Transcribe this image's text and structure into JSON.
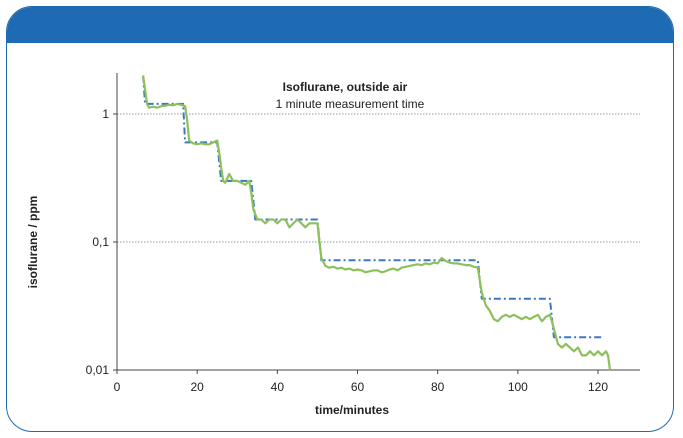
{
  "chart_data": {
    "type": "line",
    "title": "Isoflurane, outside air",
    "subtitle": "1 minute measurement time",
    "xlabel": "time/minutes",
    "ylabel": "isoflurane / ppm",
    "xlim": [
      0,
      130
    ],
    "ylim": [
      0.01,
      2
    ],
    "yscale": "log",
    "x_ticks": [
      0,
      20,
      40,
      60,
      80,
      100,
      120
    ],
    "x_tick_labels": [
      "0",
      "20",
      "40",
      "60",
      "80",
      "100",
      "120"
    ],
    "y_ticks": [
      0.01,
      0.1,
      1
    ],
    "y_tick_labels": [
      "0,01",
      "0,1",
      "1"
    ],
    "grid": "horizontal dotted at major y ticks",
    "legend": "none",
    "colors": {
      "measured": "#8dc05a",
      "setpoint": "#3a78c4",
      "frame": "#1e6bb4"
    },
    "series": [
      {
        "style": "dash-dot",
        "color": "#3a78c4",
        "points": [
          [
            6.5,
            2.0
          ],
          [
            7,
            1.2
          ],
          [
            16.5,
            1.2
          ],
          [
            17,
            0.6
          ],
          [
            25,
            0.6
          ],
          [
            26,
            0.3
          ],
          [
            33.5,
            0.3
          ],
          [
            34.5,
            0.15
          ],
          [
            50,
            0.15
          ],
          [
            51,
            0.072
          ],
          [
            90,
            0.072
          ],
          [
            91,
            0.036
          ],
          [
            108,
            0.036
          ],
          [
            109,
            0.018
          ],
          [
            121,
            0.018
          ]
        ]
      },
      {
        "style": "solid",
        "color": "#8dc05a",
        "points": [
          [
            6.5,
            2.0
          ],
          [
            7.5,
            1.2
          ],
          [
            8,
            1.12
          ],
          [
            9,
            1.14
          ],
          [
            10,
            1.12
          ],
          [
            11,
            1.15
          ],
          [
            12,
            1.16
          ],
          [
            13,
            1.18
          ],
          [
            14,
            1.17
          ],
          [
            15,
            1.2
          ],
          [
            16,
            1.18
          ],
          [
            17,
            1.15
          ],
          [
            17.5,
            0.9
          ],
          [
            18,
            0.62
          ],
          [
            19,
            0.59
          ],
          [
            20,
            0.58
          ],
          [
            21,
            0.59
          ],
          [
            22,
            0.58
          ],
          [
            23,
            0.58
          ],
          [
            24,
            0.6
          ],
          [
            25,
            0.62
          ],
          [
            25.5,
            0.5
          ],
          [
            26,
            0.38
          ],
          [
            26.5,
            0.3
          ],
          [
            27,
            0.29
          ],
          [
            28,
            0.34
          ],
          [
            29,
            0.3
          ],
          [
            30,
            0.3
          ],
          [
            31,
            0.29
          ],
          [
            32,
            0.28
          ],
          [
            33,
            0.3
          ],
          [
            33.5,
            0.24
          ],
          [
            34,
            0.18
          ],
          [
            35,
            0.15
          ],
          [
            36,
            0.15
          ],
          [
            37,
            0.14
          ],
          [
            38,
            0.15
          ],
          [
            39,
            0.15
          ],
          [
            40,
            0.14
          ],
          [
            41,
            0.15
          ],
          [
            42,
            0.15
          ],
          [
            43,
            0.13
          ],
          [
            44,
            0.14
          ],
          [
            45,
            0.15
          ],
          [
            46,
            0.14
          ],
          [
            47,
            0.13
          ],
          [
            48,
            0.14
          ],
          [
            49,
            0.14
          ],
          [
            50,
            0.14
          ],
          [
            50.5,
            0.1
          ],
          [
            51,
            0.075
          ],
          [
            52,
            0.065
          ],
          [
            53,
            0.063
          ],
          [
            54,
            0.064
          ],
          [
            55,
            0.062
          ],
          [
            56,
            0.063
          ],
          [
            57,
            0.061
          ],
          [
            58,
            0.062
          ],
          [
            59,
            0.06
          ],
          [
            60,
            0.061
          ],
          [
            61,
            0.06
          ],
          [
            62,
            0.058
          ],
          [
            63,
            0.059
          ],
          [
            64,
            0.06
          ],
          [
            65,
            0.06
          ],
          [
            66,
            0.058
          ],
          [
            67,
            0.059
          ],
          [
            68,
            0.061
          ],
          [
            69,
            0.062
          ],
          [
            70,
            0.06
          ],
          [
            71,
            0.063
          ],
          [
            72,
            0.064
          ],
          [
            73,
            0.065
          ],
          [
            74,
            0.066
          ],
          [
            75,
            0.067
          ],
          [
            76,
            0.066
          ],
          [
            77,
            0.068
          ],
          [
            78,
            0.067
          ],
          [
            79,
            0.069
          ],
          [
            80,
            0.068
          ],
          [
            81,
            0.075
          ],
          [
            82,
            0.071
          ],
          [
            83,
            0.069
          ],
          [
            84,
            0.068
          ],
          [
            85,
            0.068
          ],
          [
            86,
            0.067
          ],
          [
            87,
            0.066
          ],
          [
            88,
            0.066
          ],
          [
            89,
            0.064
          ],
          [
            90,
            0.063
          ],
          [
            91,
            0.04
          ],
          [
            92,
            0.032
          ],
          [
            93,
            0.029
          ],
          [
            94,
            0.025
          ],
          [
            95,
            0.024
          ],
          [
            96,
            0.026
          ],
          [
            97,
            0.027
          ],
          [
            98,
            0.026
          ],
          [
            99,
            0.027
          ],
          [
            100,
            0.026
          ],
          [
            101,
            0.025
          ],
          [
            102,
            0.026
          ],
          [
            103,
            0.025
          ],
          [
            104,
            0.026
          ],
          [
            105,
            0.027
          ],
          [
            106,
            0.024
          ],
          [
            107,
            0.026
          ],
          [
            108,
            0.027
          ],
          [
            108.5,
            0.024
          ],
          [
            109,
            0.021
          ],
          [
            110,
            0.016
          ],
          [
            111,
            0.015
          ],
          [
            112,
            0.016
          ],
          [
            113,
            0.015
          ],
          [
            114,
            0.014
          ],
          [
            115,
            0.015
          ],
          [
            116,
            0.013
          ],
          [
            117,
            0.013
          ],
          [
            118,
            0.014
          ],
          [
            119,
            0.013
          ],
          [
            120,
            0.014
          ],
          [
            121,
            0.013
          ],
          [
            122,
            0.014
          ],
          [
            122.5,
            0.013
          ],
          [
            123,
            0.01
          ]
        ]
      }
    ]
  }
}
